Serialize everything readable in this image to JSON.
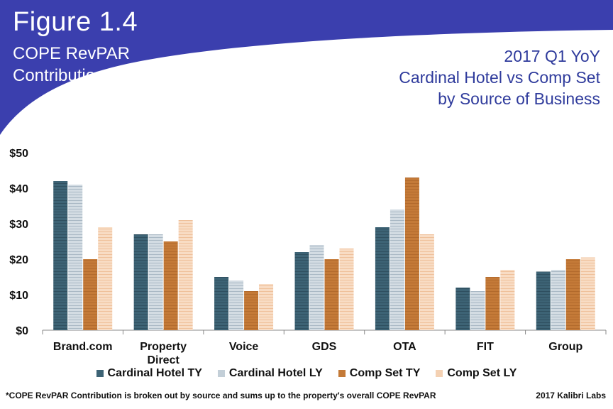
{
  "header": {
    "figure_label": "Figure 1.4",
    "subtitle_lines": [
      "COPE RevPAR",
      "Contribution"
    ],
    "chart_title_lines": [
      "2017 Q1 YoY",
      "Cardinal Hotel vs Comp Set",
      "by Source of Business"
    ]
  },
  "colors": {
    "band": "#3b3fae",
    "band_light": "#5558c0",
    "title_accent": "#2f3b9c"
  },
  "chart_data": {
    "type": "bar",
    "title": "2017 Q1 YoY Cardinal Hotel vs Comp Set by Source of Business",
    "categories": [
      "Brand.com",
      "Property\nDirect",
      "Voice",
      "GDS",
      "OTA",
      "FIT",
      "Group"
    ],
    "category_lines": [
      [
        "Brand.com"
      ],
      [
        "Property",
        "Direct"
      ],
      [
        "Voice"
      ],
      [
        "GDS"
      ],
      [
        "OTA"
      ],
      [
        "FIT"
      ],
      [
        "Group"
      ]
    ],
    "series": [
      {
        "name": "Cardinal Hotel TY",
        "color": "#3d6375",
        "values": [
          42,
          27,
          15,
          22,
          29,
          12,
          16.5
        ]
      },
      {
        "name": "Cardinal Hotel LY",
        "color": "#c3cfd8",
        "values": [
          41,
          27,
          14,
          24,
          34,
          11,
          17
        ]
      },
      {
        "name": "Comp Set TY",
        "color": "#c47a38",
        "values": [
          20,
          25,
          11,
          20,
          43,
          15,
          20
        ]
      },
      {
        "name": "Comp Set LY",
        "color": "#f4d1b3",
        "values": [
          29,
          31,
          13,
          23,
          27,
          17,
          20.5
        ]
      }
    ],
    "ylim": [
      0,
      50
    ],
    "yticks": [
      0,
      10,
      20,
      30,
      40,
      50
    ],
    "ytick_labels": [
      "$0",
      "$10",
      "$20",
      "$30",
      "$40",
      "$50"
    ],
    "grid": false,
    "legend_position": "bottom"
  },
  "footnote": {
    "text": "*COPE RevPAR Contribution is broken out by source and sums up to the property's overall COPE RevPAR",
    "credit": "2017 Kalibri Labs"
  }
}
